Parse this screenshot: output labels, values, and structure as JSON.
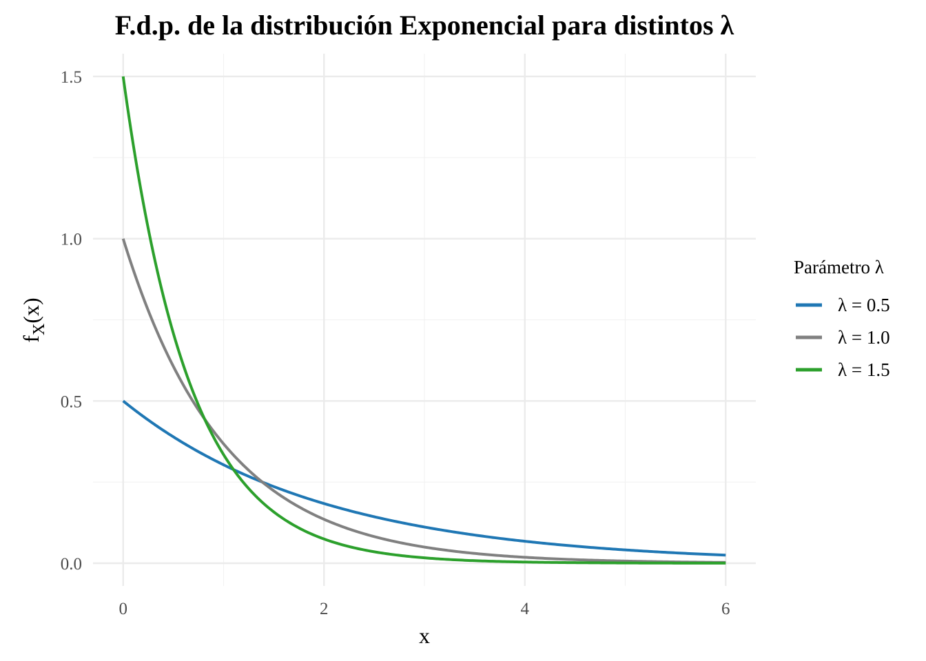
{
  "chart_data": {
    "type": "line",
    "title": "F.d.p. de la distribución Exponencial para distintos λ",
    "xlabel": "x",
    "ylabel": {
      "base": "f",
      "sub": "X",
      "rest": "(x)"
    },
    "xlim": [
      -0.3,
      6.3
    ],
    "ylim": [
      -0.07,
      1.57
    ],
    "x_major_ticks": [
      0,
      2,
      4,
      6
    ],
    "x_minor_ticks": [
      1,
      3,
      5
    ],
    "x_tick_labels": [
      "0",
      "2",
      "4",
      "6"
    ],
    "y_major_ticks": [
      0,
      0.5,
      1,
      1.5
    ],
    "y_minor_ticks": [
      0.25,
      0.75,
      1.25
    ],
    "y_tick_labels": [
      "0.0",
      "0.5",
      "1.0",
      "1.5"
    ],
    "grid": true,
    "legend": {
      "title": "Parámetro λ",
      "position": "right"
    },
    "series": [
      {
        "name": "λ = 0.5",
        "rate": 0.5,
        "color": "#1f77b4",
        "x": [
          0,
          0.5,
          1,
          1.5,
          2,
          3,
          4,
          5,
          6
        ],
        "y": [
          0.5,
          0.389,
          0.303,
          0.236,
          0.184,
          0.112,
          0.068,
          0.041,
          0.025
        ]
      },
      {
        "name": "λ = 1.0",
        "rate": 1.0,
        "color": "#808080",
        "x": [
          0,
          0.5,
          1,
          1.5,
          2,
          3,
          4,
          5,
          6
        ],
        "y": [
          1.0,
          0.607,
          0.368,
          0.223,
          0.135,
          0.05,
          0.018,
          0.007,
          0.002
        ]
      },
      {
        "name": "λ = 1.5",
        "rate": 1.5,
        "color": "#2ca02c",
        "x": [
          0,
          0.5,
          1,
          1.5,
          2,
          3,
          4,
          5,
          6
        ],
        "y": [
          1.5,
          0.708,
          0.335,
          0.158,
          0.075,
          0.017,
          0.004,
          0.001,
          0.0002
        ]
      }
    ]
  }
}
